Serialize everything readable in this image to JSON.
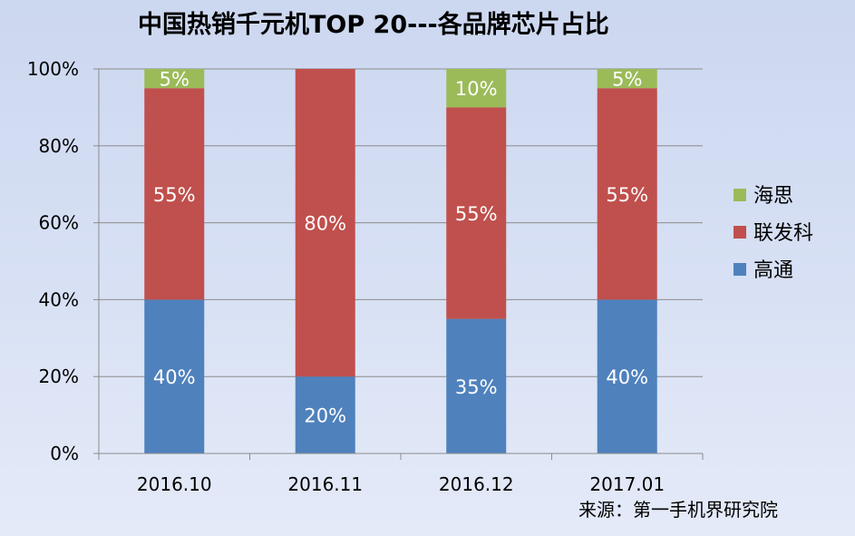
{
  "chart_data": {
    "type": "bar",
    "stacked": true,
    "title": "中国热销千元机TOP 20---各品牌芯片占比",
    "categories": [
      "2016.10",
      "2016.11",
      "2016.12",
      "2017.01"
    ],
    "series": [
      {
        "name": "高通",
        "values": [
          40,
          20,
          35,
          40
        ],
        "color": "#4f81bd"
      },
      {
        "name": "联发科",
        "values": [
          55,
          80,
          55,
          55
        ],
        "color": "#c0504d"
      },
      {
        "name": "海思",
        "values": [
          5,
          0,
          10,
          5
        ],
        "color": "#9bbb59"
      }
    ],
    "ylim": [
      0,
      100
    ],
    "yticks": [
      "0%",
      "20%",
      "40%",
      "60%",
      "80%",
      "100%"
    ],
    "ytick_values": [
      0,
      20,
      40,
      60,
      80,
      100
    ],
    "value_suffix": "%",
    "grid": true,
    "legend": "right",
    "legend_order": [
      "海思",
      "联发科",
      "高通"
    ],
    "source": "来源：第一手机界研究院"
  }
}
